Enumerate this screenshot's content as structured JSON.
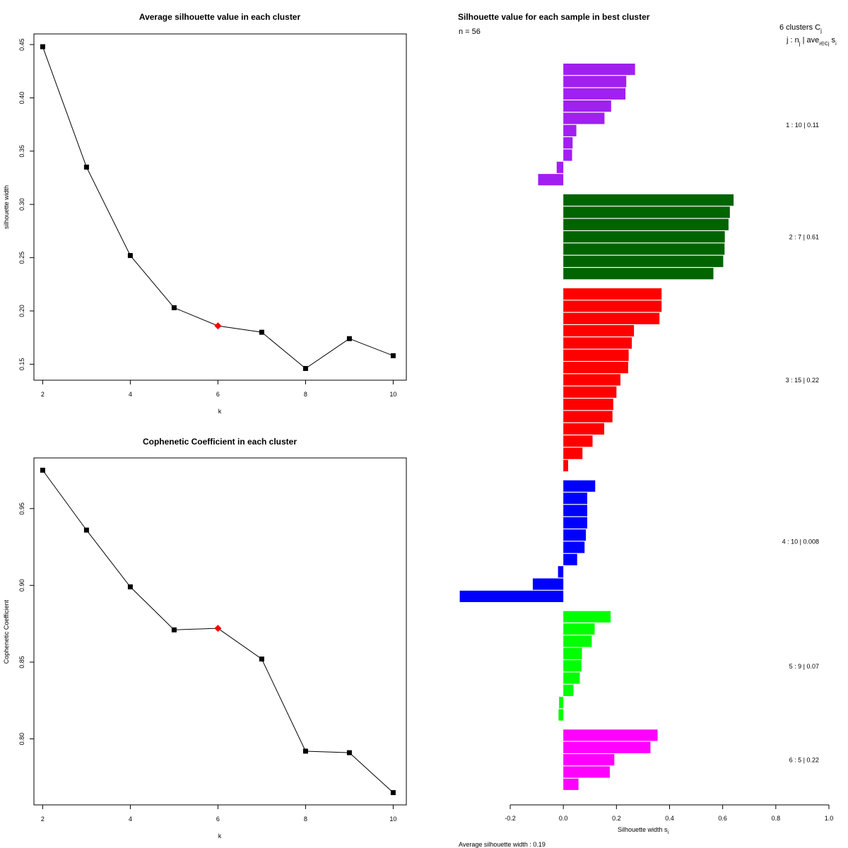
{
  "chart_data": [
    {
      "type": "line",
      "title": "Average silhouette value in each cluster",
      "xlabel": "k",
      "ylabel": "silhouette width",
      "x": [
        2,
        3,
        4,
        5,
        6,
        7,
        8,
        9,
        10
      ],
      "y": [
        0.448,
        0.335,
        0.252,
        0.203,
        0.186,
        0.18,
        0.146,
        0.174,
        0.158
      ],
      "highlight_k": 6,
      "xlim": [
        1.8,
        10.3
      ],
      "ylim": [
        0.135,
        0.46
      ],
      "xticks": [
        2,
        4,
        6,
        8,
        10
      ],
      "yticks": [
        0.15,
        0.2,
        0.25,
        0.3,
        0.35,
        0.4,
        0.45
      ],
      "ytick_labels": [
        "0.15",
        "0.20",
        "0.25",
        "0.30",
        "0.35",
        "0.40",
        "0.45"
      ],
      "highlight_color": "#ff0000",
      "point_color": "#000000"
    },
    {
      "type": "line",
      "title": "Cophenetic Coefficient in each cluster",
      "xlabel": "k",
      "ylabel": "Cophenetic Coefficient",
      "x": [
        2,
        3,
        4,
        5,
        6,
        7,
        8,
        9,
        10
      ],
      "y": [
        0.975,
        0.936,
        0.899,
        0.871,
        0.872,
        0.852,
        0.792,
        0.791,
        0.765
      ],
      "highlight_k": 6,
      "xlim": [
        1.8,
        10.3
      ],
      "ylim": [
        0.757,
        0.983
      ],
      "xticks": [
        2,
        4,
        6,
        8,
        10
      ],
      "yticks": [
        0.8,
        0.85,
        0.9,
        0.95
      ],
      "ytick_labels": [
        "0.80",
        "0.85",
        "0.90",
        "0.95"
      ],
      "highlight_color": "#ff0000",
      "point_color": "#000000"
    },
    {
      "type": "bar",
      "orientation": "horizontal",
      "title": "Silhouette value for each sample in best cluster",
      "n_label": "n = 56",
      "header_line1": "6  clusters  C",
      "header_j": "j",
      "header_line2": "j :  n",
      "header_line2_sub": "j",
      "header_line2_rest": " | ave",
      "header_line2_sub2": "i∈Cj",
      "header_line2_end": " s",
      "header_line2_sub3": "i",
      "xlabel": "Silhouette width s",
      "xlabel_sub": "i",
      "xlim": [
        -0.2,
        1.0
      ],
      "xticks": [
        -0.2,
        0.0,
        0.2,
        0.4,
        0.6,
        0.8,
        1.0
      ],
      "xtick_labels": [
        "-0.2",
        "0.0",
        "0.2",
        "0.4",
        "0.6",
        "0.8",
        "1.0"
      ],
      "avg_label": "Average silhouette width :  0.19",
      "clusters": [
        {
          "id": 1,
          "label": "1 :   10  |  0.11",
          "color": "#a020f0",
          "values": [
            0.27,
            0.237,
            0.234,
            0.18,
            0.155,
            0.049,
            0.035,
            0.033,
            -0.025,
            -0.095
          ]
        },
        {
          "id": 2,
          "label": "2 :   7  |  0.61",
          "color": "#006400",
          "values": [
            0.641,
            0.627,
            0.622,
            0.608,
            0.607,
            0.602,
            0.565
          ]
        },
        {
          "id": 3,
          "label": "3 :   15  |  0.22",
          "color": "#ff0000",
          "values": [
            0.37,
            0.37,
            0.362,
            0.266,
            0.258,
            0.246,
            0.244,
            0.215,
            0.2,
            0.188,
            0.185,
            0.154,
            0.11,
            0.072,
            0.018
          ]
        },
        {
          "id": 4,
          "label": "4 :   10  |  0.008",
          "color": "#0000ff",
          "values": [
            0.12,
            0.09,
            0.09,
            0.09,
            0.085,
            0.08,
            0.052,
            -0.02,
            -0.115,
            -0.39
          ]
        },
        {
          "id": 5,
          "label": "5 :   9  |  0.07",
          "color": "#00ff00",
          "values": [
            0.178,
            0.118,
            0.107,
            0.07,
            0.068,
            0.062,
            0.038,
            -0.016,
            -0.018
          ]
        },
        {
          "id": 6,
          "label": "6 :   5  |  0.22",
          "color": "#ff00ff",
          "values": [
            0.355,
            0.328,
            0.192,
            0.175,
            0.057
          ]
        }
      ]
    }
  ]
}
